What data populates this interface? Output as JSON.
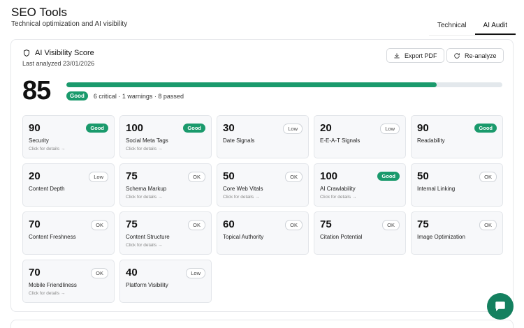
{
  "header": {
    "title": "SEO Tools",
    "subtitle": "Technical optimization and AI visibility"
  },
  "tabs": [
    {
      "label": "Technical",
      "active": false
    },
    {
      "label": "AI Audit",
      "active": true
    }
  ],
  "audit": {
    "title": "AI Visibility Score",
    "title_icon": "shield-icon",
    "last_analyzed": "Last analyzed 23/01/2026",
    "export_label": "Export PDF",
    "reanalyze_label": "Re-analyze",
    "score": "85",
    "progress_percent": 85,
    "status_badge": "Good",
    "summary": "6 critical · 1 warnings · 8 passed"
  },
  "colors": {
    "accent": "#1a9a6c",
    "track": "#e3e8ec",
    "fab": "#14805f"
  },
  "metrics": [
    {
      "score": "90",
      "label": "Security",
      "badge": "Good",
      "status": "good",
      "hint": "Click for details →"
    },
    {
      "score": "100",
      "label": "Social Meta Tags",
      "badge": "Good",
      "status": "good",
      "hint": "Click for details →"
    },
    {
      "score": "30",
      "label": "Date Signals",
      "badge": "Low",
      "status": "low",
      "hint": ""
    },
    {
      "score": "20",
      "label": "E-E-A-T Signals",
      "badge": "Low",
      "status": "low",
      "hint": ""
    },
    {
      "score": "90",
      "label": "Readability",
      "badge": "Good",
      "status": "good",
      "hint": ""
    },
    {
      "score": "20",
      "label": "Content Depth",
      "badge": "Low",
      "status": "low",
      "hint": ""
    },
    {
      "score": "75",
      "label": "Schema Markup",
      "badge": "OK",
      "status": "ok",
      "hint": "Click for details →"
    },
    {
      "score": "50",
      "label": "Core Web Vitals",
      "badge": "OK",
      "status": "ok",
      "hint": "Click for details →"
    },
    {
      "score": "100",
      "label": "AI Crawlability",
      "badge": "Good",
      "status": "good",
      "hint": "Click for details →"
    },
    {
      "score": "50",
      "label": "Internal Linking",
      "badge": "OK",
      "status": "ok",
      "hint": ""
    },
    {
      "score": "70",
      "label": "Content Freshness",
      "badge": "OK",
      "status": "ok",
      "hint": ""
    },
    {
      "score": "75",
      "label": "Content Structure",
      "badge": "OK",
      "status": "ok",
      "hint": "Click for details →"
    },
    {
      "score": "60",
      "label": "Topical Authority",
      "badge": "OK",
      "status": "ok",
      "hint": ""
    },
    {
      "score": "75",
      "label": "Citation Potential",
      "badge": "OK",
      "status": "ok",
      "hint": ""
    },
    {
      "score": "75",
      "label": "Image Optimization",
      "badge": "OK",
      "status": "ok",
      "hint": ""
    },
    {
      "score": "70",
      "label": "Mobile Friendliness",
      "badge": "OK",
      "status": "ok",
      "hint": "Click for details →"
    },
    {
      "score": "40",
      "label": "Platform Visibility",
      "badge": "Low",
      "status": "low",
      "hint": ""
    }
  ],
  "chat": {
    "icon": "chat-icon"
  }
}
